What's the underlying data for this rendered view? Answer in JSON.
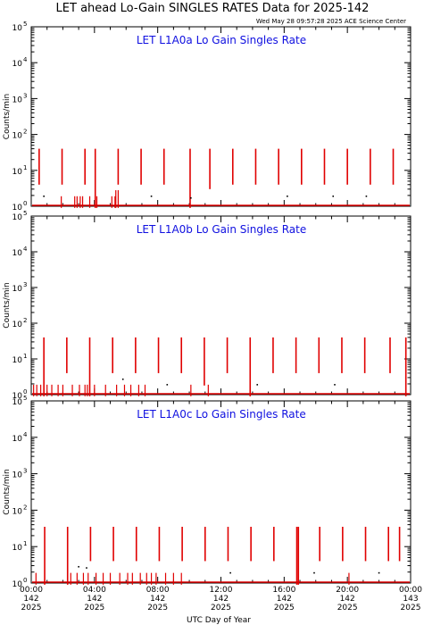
{
  "title": "LET ahead Lo-Gain SINGLES RATES Data for 2025-142",
  "timestamp": "Wed May 28 09:57:28 2025 ACE Science Center",
  "xlabel": "UTC Day of Year",
  "colors": {
    "data": "#e00000",
    "panel_title": "#1010e0",
    "frame": "#000000",
    "text": "#000000"
  },
  "chart_data": [
    {
      "type": "scatter",
      "title": "LET L1A0a Lo Gain Singles Rate",
      "ylabel": "Counts/min",
      "yscale": "log",
      "ylim": [
        1,
        100000
      ],
      "xlim": [
        0,
        24
      ],
      "yticks": [
        "10",
        "10",
        "10",
        "10",
        "10",
        "10"
      ],
      "ytick_exponents": [
        "0",
        "1",
        "2",
        "3",
        "4",
        "5"
      ],
      "spikes": [
        {
          "x": 0.5,
          "low": 4,
          "high": 40
        },
        {
          "x": 1.95,
          "low": 4,
          "high": 40
        },
        {
          "x": 3.4,
          "low": 4,
          "high": 40
        },
        {
          "x": 4.05,
          "low": 0.9,
          "high": 40
        },
        {
          "x": 5.5,
          "low": 4,
          "high": 40
        },
        {
          "x": 6.95,
          "low": 4,
          "high": 40
        },
        {
          "x": 8.4,
          "low": 4,
          "high": 40
        },
        {
          "x": 10.05,
          "low": 0.9,
          "high": 40
        },
        {
          "x": 11.3,
          "low": 3,
          "high": 40
        },
        {
          "x": 12.75,
          "low": 4,
          "high": 40
        },
        {
          "x": 14.2,
          "low": 4,
          "high": 40
        },
        {
          "x": 15.65,
          "low": 4,
          "high": 40
        },
        {
          "x": 17.1,
          "low": 4,
          "high": 40
        },
        {
          "x": 18.55,
          "low": 4,
          "high": 40
        },
        {
          "x": 20.0,
          "low": 4,
          "high": 40
        },
        {
          "x": 21.45,
          "low": 4,
          "high": 40
        },
        {
          "x": 22.9,
          "low": 4,
          "high": 40
        }
      ],
      "bursts": [
        {
          "x": 1.9,
          "high": 1.9
        },
        {
          "x": 2.75,
          "high": 1.9
        },
        {
          "x": 2.9,
          "high": 1.9
        },
        {
          "x": 3.1,
          "high": 1.9
        },
        {
          "x": 3.25,
          "high": 1.9
        },
        {
          "x": 3.7,
          "high": 1.9
        },
        {
          "x": 4.15,
          "high": 1.9
        },
        {
          "x": 5.1,
          "high": 1.9
        },
        {
          "x": 5.3,
          "high": 1.9
        },
        {
          "x": 5.35,
          "high": 2.8
        },
        {
          "x": 5.5,
          "high": 2.8
        }
      ],
      "dots": [
        {
          "x": 0.8,
          "y": 1.9
        },
        {
          "x": 7.6,
          "y": 1.9
        },
        {
          "x": 10.1,
          "y": 1.7
        },
        {
          "x": 16.2,
          "y": 1.9
        },
        {
          "x": 19.1,
          "y": 1.9
        },
        {
          "x": 21.2,
          "y": 1.9
        }
      ]
    },
    {
      "type": "scatter",
      "title": "LET L1A0b Lo Gain Singles Rate",
      "ylabel": "Counts/min",
      "yscale": "log",
      "ylim": [
        1,
        100000
      ],
      "xlim": [
        0,
        24
      ],
      "yticks": [
        "10",
        "10",
        "10",
        "10",
        "10",
        "10"
      ],
      "ytick_exponents": [
        "0",
        "1",
        "2",
        "3",
        "4",
        "5"
      ],
      "spikes": [
        {
          "x": 0.8,
          "low": 0.9,
          "high": 40
        },
        {
          "x": 2.25,
          "low": 4,
          "high": 40
        },
        {
          "x": 3.7,
          "low": 0.9,
          "high": 40
        },
        {
          "x": 5.15,
          "low": 4,
          "high": 40
        },
        {
          "x": 6.6,
          "low": 4,
          "high": 40
        },
        {
          "x": 8.05,
          "low": 4,
          "high": 40
        },
        {
          "x": 9.5,
          "low": 4,
          "high": 40
        },
        {
          "x": 10.95,
          "low": 1.8,
          "high": 40
        },
        {
          "x": 12.4,
          "low": 4,
          "high": 40
        },
        {
          "x": 13.85,
          "low": 0.9,
          "high": 40
        },
        {
          "x": 15.3,
          "low": 4,
          "high": 40
        },
        {
          "x": 16.75,
          "low": 4,
          "high": 40
        },
        {
          "x": 18.2,
          "low": 4,
          "high": 40
        },
        {
          "x": 19.65,
          "low": 4,
          "high": 40
        },
        {
          "x": 21.1,
          "low": 4,
          "high": 40
        },
        {
          "x": 22.7,
          "low": 4,
          "high": 40
        },
        {
          "x": 23.7,
          "low": 0.9,
          "high": 40
        }
      ],
      "bursts": [
        {
          "x": 0.15,
          "high": 1.9
        },
        {
          "x": 0.35,
          "high": 1.9
        },
        {
          "x": 0.6,
          "high": 1.9
        },
        {
          "x": 1.0,
          "high": 1.9
        },
        {
          "x": 1.3,
          "high": 1.9
        },
        {
          "x": 1.7,
          "high": 1.9
        },
        {
          "x": 2.0,
          "high": 1.9
        },
        {
          "x": 2.6,
          "high": 1.9
        },
        {
          "x": 3.05,
          "high": 1.9
        },
        {
          "x": 3.4,
          "high": 1.9
        },
        {
          "x": 3.55,
          "high": 1.9
        },
        {
          "x": 4.0,
          "high": 1.9
        },
        {
          "x": 4.7,
          "high": 1.9
        },
        {
          "x": 5.4,
          "high": 1.9
        },
        {
          "x": 5.9,
          "high": 1.9
        },
        {
          "x": 6.3,
          "high": 1.9
        },
        {
          "x": 6.8,
          "high": 1.9
        },
        {
          "x": 7.2,
          "high": 1.9
        },
        {
          "x": 10.1,
          "high": 1.9
        },
        {
          "x": 11.2,
          "high": 1.9
        }
      ],
      "dots": [
        {
          "x": 5.8,
          "y": 2.7
        },
        {
          "x": 8.6,
          "y": 1.9
        },
        {
          "x": 14.3,
          "y": 1.9
        },
        {
          "x": 19.2,
          "y": 1.9
        }
      ]
    },
    {
      "type": "scatter",
      "title": "LET L1A0c Lo Gain Singles Rate",
      "ylabel": "Counts/min",
      "yscale": "log",
      "ylim": [
        1,
        100000
      ],
      "xlim": [
        0,
        24
      ],
      "yticks": [
        "10",
        "10",
        "10",
        "10",
        "10",
        "10"
      ],
      "ytick_exponents": [
        "0",
        "1",
        "2",
        "3",
        "4",
        "5"
      ],
      "spikes": [
        {
          "x": 0.85,
          "low": 0.9,
          "high": 35
        },
        {
          "x": 2.3,
          "low": 0.9,
          "high": 35
        },
        {
          "x": 3.75,
          "low": 4,
          "high": 35
        },
        {
          "x": 5.2,
          "low": 4,
          "high": 35
        },
        {
          "x": 6.65,
          "low": 4,
          "high": 35
        },
        {
          "x": 8.1,
          "low": 4,
          "high": 35
        },
        {
          "x": 9.55,
          "low": 4,
          "high": 35
        },
        {
          "x": 11.0,
          "low": 4,
          "high": 35
        },
        {
          "x": 12.45,
          "low": 4,
          "high": 35
        },
        {
          "x": 13.9,
          "low": 4,
          "high": 35
        },
        {
          "x": 15.35,
          "low": 4,
          "high": 35
        },
        {
          "x": 16.8,
          "low": 0.9,
          "high": 35
        },
        {
          "x": 16.9,
          "low": 0.9,
          "high": 35
        },
        {
          "x": 18.25,
          "low": 4,
          "high": 35
        },
        {
          "x": 19.7,
          "low": 4,
          "high": 35
        },
        {
          "x": 21.15,
          "low": 4,
          "high": 35
        },
        {
          "x": 22.6,
          "low": 4,
          "high": 35
        },
        {
          "x": 23.3,
          "low": 4,
          "high": 35
        }
      ],
      "bursts": [
        {
          "x": 0.3,
          "high": 1.9
        },
        {
          "x": 2.5,
          "high": 1.9
        },
        {
          "x": 2.9,
          "high": 1.9
        },
        {
          "x": 3.3,
          "high": 1.9
        },
        {
          "x": 3.6,
          "high": 1.9
        },
        {
          "x": 4.1,
          "high": 1.9
        },
        {
          "x": 4.55,
          "high": 1.9
        },
        {
          "x": 5.0,
          "high": 1.9
        },
        {
          "x": 5.6,
          "high": 1.9
        },
        {
          "x": 6.1,
          "high": 1.9
        },
        {
          "x": 6.4,
          "high": 1.9
        },
        {
          "x": 6.9,
          "high": 1.9
        },
        {
          "x": 7.3,
          "high": 1.9
        },
        {
          "x": 7.6,
          "high": 1.9
        },
        {
          "x": 7.9,
          "high": 1.9
        },
        {
          "x": 8.5,
          "high": 1.9
        },
        {
          "x": 9.0,
          "high": 1.9
        },
        {
          "x": 9.5,
          "high": 1.9
        },
        {
          "x": 20.1,
          "high": 1.9
        }
      ],
      "dots": [
        {
          "x": 3.0,
          "y": 2.8
        },
        {
          "x": 3.5,
          "y": 2.6
        },
        {
          "x": 12.6,
          "y": 1.9
        },
        {
          "x": 17.9,
          "y": 1.9
        },
        {
          "x": 22.0,
          "y": 1.9
        }
      ]
    }
  ],
  "xticks": [
    {
      "time": "00:00",
      "day": "142",
      "year": "2025"
    },
    {
      "time": "04:00",
      "day": "142",
      "year": "2025"
    },
    {
      "time": "08:00",
      "day": "142",
      "year": "2025"
    },
    {
      "time": "12:00",
      "day": "142",
      "year": "2025"
    },
    {
      "time": "16:00",
      "day": "142",
      "year": "2025"
    },
    {
      "time": "20:00",
      "day": "142",
      "year": "2025"
    },
    {
      "time": "00:00",
      "day": "143",
      "year": "2025"
    }
  ]
}
